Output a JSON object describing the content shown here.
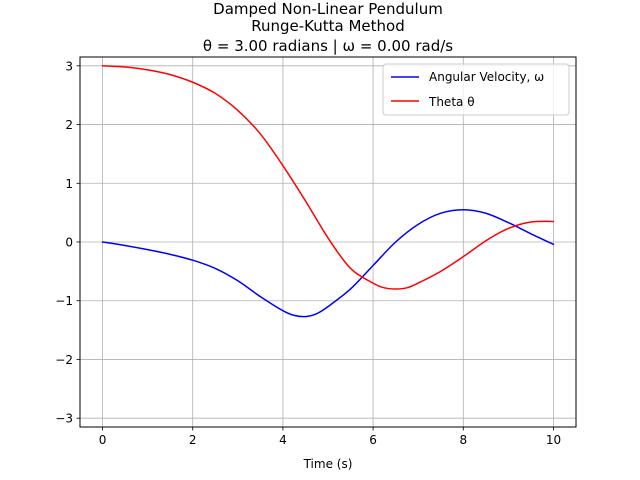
{
  "chart_data": {
    "type": "line",
    "title": "Damped Non-Linear Pendulum",
    "subtitle": "Runge-Kutta Method",
    "subtitle2": "θ = 3.00 radians | ω = 0.00 rad/s",
    "xlabel": "Time (s)",
    "ylabel": "",
    "xlim": [
      -0.5,
      10.5
    ],
    "ylim": [
      -3.15,
      3.15
    ],
    "xticks": [
      0,
      2,
      4,
      6,
      8,
      10
    ],
    "xtick_labels": [
      "0",
      "2",
      "4",
      "6",
      "8",
      "10"
    ],
    "yticks": [
      -3,
      -2,
      -1,
      0,
      1,
      2,
      3
    ],
    "ytick_labels": [
      "−3",
      "−2",
      "−1",
      "0",
      "1",
      "2",
      "3"
    ],
    "grid": true,
    "legend_position": "top-right",
    "series": [
      {
        "name": "Angular Velocity, ω",
        "color": "#0000ff",
        "x": [
          0,
          0.5,
          1,
          1.5,
          2,
          2.5,
          3,
          3.5,
          4,
          4.25,
          4.5,
          4.75,
          5,
          5.5,
          6,
          6.5,
          7,
          7.5,
          8,
          8.5,
          9,
          9.5,
          10
        ],
        "y": [
          0,
          -0.06,
          -0.13,
          -0.21,
          -0.31,
          -0.45,
          -0.66,
          -0.93,
          -1.17,
          -1.25,
          -1.27,
          -1.22,
          -1.1,
          -0.8,
          -0.4,
          0,
          0.3,
          0.49,
          0.55,
          0.49,
          0.33,
          0.14,
          -0.04
        ]
      },
      {
        "name": "Theta θ",
        "color": "#ff0000",
        "x": [
          0,
          0.5,
          1,
          1.5,
          2,
          2.5,
          3,
          3.5,
          4,
          4.5,
          5,
          5.5,
          6,
          6.25,
          6.5,
          6.75,
          7,
          7.5,
          8,
          8.5,
          9,
          9.5,
          10
        ],
        "y": [
          3.0,
          2.98,
          2.93,
          2.85,
          2.72,
          2.53,
          2.24,
          1.84,
          1.3,
          0.7,
          0.07,
          -0.45,
          -0.7,
          -0.78,
          -0.8,
          -0.78,
          -0.7,
          -0.5,
          -0.25,
          0.02,
          0.23,
          0.34,
          0.35
        ]
      }
    ]
  }
}
